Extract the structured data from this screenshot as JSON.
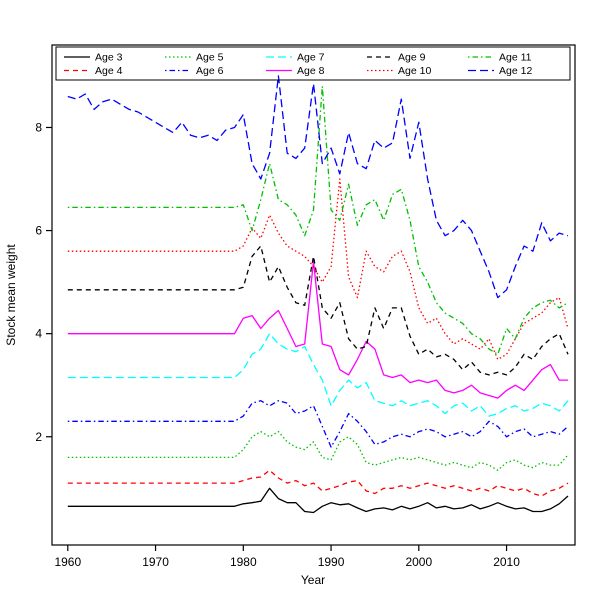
{
  "chart_data": {
    "type": "line",
    "title": "",
    "xlabel": "Year",
    "ylabel": "Stock mean weight",
    "x_ticks": [
      1960,
      1970,
      1980,
      1990,
      2000,
      2010
    ],
    "y_ticks": [
      2,
      4,
      6,
      8
    ],
    "xlim": [
      1958.2,
      2017.8
    ],
    "ylim": [
      -0.1,
      9.6
    ],
    "grid": false,
    "legend_position": "top",
    "legend_columns": 5,
    "background_color": "#ffffff",
    "axis_color": "#000000",
    "x": [
      1960,
      1961,
      1962,
      1963,
      1964,
      1965,
      1966,
      1967,
      1968,
      1969,
      1970,
      1971,
      1972,
      1973,
      1974,
      1975,
      1976,
      1977,
      1978,
      1979,
      1980,
      1981,
      1982,
      1983,
      1984,
      1985,
      1986,
      1987,
      1988,
      1989,
      1990,
      1991,
      1992,
      1993,
      1994,
      1995,
      1996,
      1997,
      1998,
      1999,
      2000,
      2001,
      2002,
      2003,
      2004,
      2005,
      2006,
      2007,
      2008,
      2009,
      2010,
      2011,
      2012,
      2013,
      2014,
      2015,
      2016,
      2017
    ],
    "series": [
      {
        "name": "Age 3",
        "color": "#000000",
        "linestyle": "solid",
        "values": [
          0.65,
          0.65,
          0.65,
          0.65,
          0.65,
          0.65,
          0.65,
          0.65,
          0.65,
          0.65,
          0.65,
          0.65,
          0.65,
          0.65,
          0.65,
          0.65,
          0.65,
          0.65,
          0.65,
          0.65,
          0.7,
          0.72,
          0.75,
          1.0,
          0.8,
          0.72,
          0.72,
          0.55,
          0.53,
          0.65,
          0.72,
          0.68,
          0.7,
          0.62,
          0.55,
          0.6,
          0.62,
          0.58,
          0.65,
          0.6,
          0.65,
          0.72,
          0.62,
          0.65,
          0.6,
          0.62,
          0.68,
          0.6,
          0.65,
          0.72,
          0.65,
          0.6,
          0.62,
          0.55,
          0.55,
          0.6,
          0.7,
          0.85
        ]
      },
      {
        "name": "Age 4",
        "color": "#ff0000",
        "linestyle": "dashed",
        "values": [
          1.1,
          1.1,
          1.1,
          1.1,
          1.1,
          1.1,
          1.1,
          1.1,
          1.1,
          1.1,
          1.1,
          1.1,
          1.1,
          1.1,
          1.1,
          1.1,
          1.1,
          1.1,
          1.1,
          1.1,
          1.15,
          1.2,
          1.22,
          1.35,
          1.2,
          1.1,
          1.15,
          1.05,
          1.1,
          0.95,
          1.0,
          1.05,
          1.12,
          1.15,
          0.95,
          0.9,
          1.0,
          1.0,
          1.05,
          1.0,
          1.05,
          1.1,
          1.05,
          1.0,
          1.05,
          1.0,
          0.95,
          1.0,
          0.95,
          1.05,
          1.0,
          0.95,
          1.0,
          0.9,
          0.85,
          0.95,
          1.0,
          1.1
        ]
      },
      {
        "name": "Age 5",
        "color": "#00c000",
        "linestyle": "dotted",
        "values": [
          1.6,
          1.6,
          1.6,
          1.6,
          1.6,
          1.6,
          1.6,
          1.6,
          1.6,
          1.6,
          1.6,
          1.6,
          1.6,
          1.6,
          1.6,
          1.6,
          1.6,
          1.6,
          1.6,
          1.6,
          1.75,
          2.0,
          2.1,
          2.0,
          2.1,
          1.9,
          1.8,
          1.75,
          1.9,
          1.6,
          1.55,
          1.9,
          2.0,
          1.85,
          1.5,
          1.45,
          1.5,
          1.55,
          1.6,
          1.55,
          1.6,
          1.55,
          1.5,
          1.45,
          1.5,
          1.45,
          1.4,
          1.5,
          1.45,
          1.35,
          1.5,
          1.55,
          1.45,
          1.4,
          1.5,
          1.45,
          1.45,
          1.65
        ]
      },
      {
        "name": "Age 6",
        "color": "#0000ff",
        "linestyle": "dashdot",
        "values": [
          2.3,
          2.3,
          2.3,
          2.3,
          2.3,
          2.3,
          2.3,
          2.3,
          2.3,
          2.3,
          2.3,
          2.3,
          2.3,
          2.3,
          2.3,
          2.3,
          2.3,
          2.3,
          2.3,
          2.3,
          2.4,
          2.65,
          2.7,
          2.6,
          2.7,
          2.65,
          2.45,
          2.5,
          2.6,
          2.2,
          1.8,
          2.1,
          2.45,
          2.3,
          2.1,
          1.85,
          1.9,
          2.0,
          2.05,
          2.0,
          2.1,
          2.15,
          2.1,
          2.0,
          2.05,
          2.1,
          2.0,
          2.1,
          2.3,
          2.2,
          2.0,
          2.1,
          2.15,
          2.0,
          2.05,
          2.1,
          2.05,
          2.2
        ]
      },
      {
        "name": "Age 7",
        "color": "#00ffff",
        "linestyle": "longdash",
        "values": [
          3.15,
          3.15,
          3.15,
          3.15,
          3.15,
          3.15,
          3.15,
          3.15,
          3.15,
          3.15,
          3.15,
          3.15,
          3.15,
          3.15,
          3.15,
          3.15,
          3.15,
          3.15,
          3.15,
          3.15,
          3.3,
          3.6,
          3.7,
          4.0,
          3.8,
          3.7,
          3.65,
          3.75,
          3.4,
          3.1,
          2.6,
          2.9,
          3.1,
          2.95,
          3.05,
          2.7,
          2.65,
          2.6,
          2.7,
          2.6,
          2.65,
          2.7,
          2.6,
          2.45,
          2.6,
          2.65,
          2.5,
          2.6,
          2.4,
          2.45,
          2.55,
          2.6,
          2.5,
          2.55,
          2.65,
          2.6,
          2.5,
          2.7
        ]
      },
      {
        "name": "Age 8",
        "color": "#ff00ff",
        "linestyle": "solid",
        "values": [
          4.0,
          4.0,
          4.0,
          4.0,
          4.0,
          4.0,
          4.0,
          4.0,
          4.0,
          4.0,
          4.0,
          4.0,
          4.0,
          4.0,
          4.0,
          4.0,
          4.0,
          4.0,
          4.0,
          4.0,
          4.3,
          4.35,
          4.1,
          4.3,
          4.45,
          4.1,
          3.75,
          3.8,
          5.4,
          3.8,
          3.75,
          3.3,
          3.2,
          3.5,
          3.85,
          3.7,
          3.2,
          3.15,
          3.2,
          3.05,
          3.1,
          3.05,
          3.1,
          2.9,
          2.85,
          2.9,
          3.0,
          2.85,
          2.8,
          2.75,
          2.9,
          3.0,
          2.9,
          3.1,
          3.3,
          3.4,
          3.1,
          3.1
        ]
      },
      {
        "name": "Age 9",
        "color": "#000000",
        "linestyle": "dashed",
        "values": [
          4.85,
          4.85,
          4.85,
          4.85,
          4.85,
          4.85,
          4.85,
          4.85,
          4.85,
          4.85,
          4.85,
          4.85,
          4.85,
          4.85,
          4.85,
          4.85,
          4.85,
          4.85,
          4.85,
          4.85,
          4.9,
          5.5,
          5.7,
          5.0,
          5.3,
          4.9,
          4.6,
          4.55,
          5.5,
          4.5,
          4.3,
          4.6,
          3.9,
          3.7,
          3.75,
          4.5,
          4.1,
          4.5,
          4.5,
          3.95,
          3.6,
          3.7,
          3.55,
          3.6,
          3.5,
          3.3,
          3.45,
          3.25,
          3.2,
          3.25,
          3.2,
          3.35,
          3.6,
          3.5,
          3.75,
          3.9,
          4.0,
          3.6
        ]
      },
      {
        "name": "Age 10",
        "color": "#ff0000",
        "linestyle": "dotted",
        "values": [
          5.6,
          5.6,
          5.6,
          5.6,
          5.6,
          5.6,
          5.6,
          5.6,
          5.6,
          5.6,
          5.6,
          5.6,
          5.6,
          5.6,
          5.6,
          5.6,
          5.6,
          5.6,
          5.6,
          5.6,
          5.7,
          6.05,
          5.85,
          6.3,
          5.95,
          5.7,
          5.6,
          5.5,
          5.3,
          5.0,
          5.3,
          7.0,
          5.1,
          4.7,
          5.6,
          5.3,
          5.2,
          5.5,
          5.6,
          5.2,
          4.5,
          4.2,
          4.3,
          4.0,
          3.8,
          3.9,
          3.8,
          3.7,
          3.9,
          3.5,
          3.6,
          3.9,
          4.2,
          4.3,
          4.4,
          4.6,
          4.7,
          4.1
        ]
      },
      {
        "name": "Age 11",
        "color": "#00c000",
        "linestyle": "dashdot",
        "values": [
          6.45,
          6.45,
          6.45,
          6.45,
          6.45,
          6.45,
          6.45,
          6.45,
          6.45,
          6.45,
          6.45,
          6.45,
          6.45,
          6.45,
          6.45,
          6.45,
          6.45,
          6.45,
          6.45,
          6.45,
          6.5,
          6.0,
          6.6,
          7.3,
          6.6,
          6.5,
          6.3,
          5.9,
          6.4,
          8.8,
          6.4,
          6.2,
          6.9,
          6.1,
          6.5,
          6.6,
          6.2,
          6.7,
          6.8,
          6.2,
          5.3,
          5.0,
          4.6,
          4.4,
          4.3,
          4.2,
          4.0,
          3.9,
          3.7,
          3.6,
          4.1,
          3.9,
          4.3,
          4.5,
          4.6,
          4.65,
          4.5,
          4.6
        ]
      },
      {
        "name": "Age 12",
        "color": "#0000ff",
        "linestyle": "longdash",
        "values": [
          8.6,
          8.55,
          8.65,
          8.35,
          8.5,
          8.55,
          8.45,
          8.35,
          8.3,
          8.2,
          8.1,
          8.0,
          7.9,
          8.1,
          7.85,
          7.8,
          7.85,
          7.75,
          7.95,
          8.0,
          8.25,
          7.3,
          7.0,
          7.5,
          9.0,
          7.5,
          7.4,
          7.6,
          8.85,
          7.3,
          7.6,
          7.1,
          7.9,
          7.3,
          7.2,
          7.75,
          7.6,
          7.7,
          8.55,
          7.4,
          8.1,
          7.0,
          6.2,
          5.9,
          6.0,
          6.2,
          6.0,
          5.6,
          5.2,
          4.7,
          4.85,
          5.3,
          5.7,
          5.6,
          6.15,
          5.8,
          5.95,
          5.9
        ]
      }
    ]
  }
}
